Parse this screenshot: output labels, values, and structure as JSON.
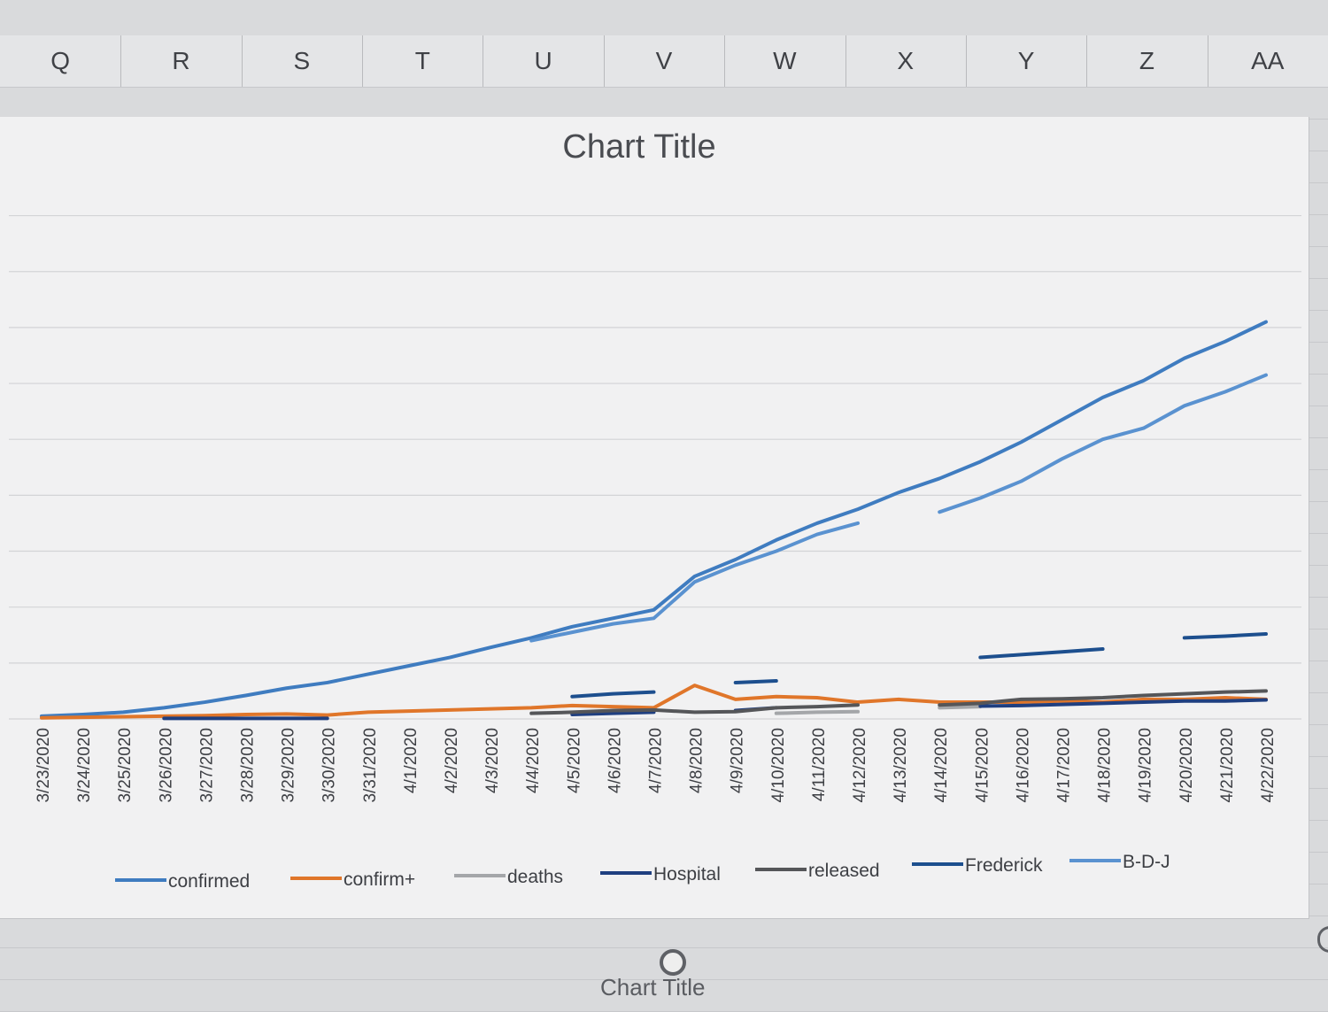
{
  "spreadsheet": {
    "columns": [
      "Q",
      "R",
      "S",
      "T",
      "U",
      "V",
      "W",
      "X",
      "Y",
      "Z",
      "AA"
    ]
  },
  "chart_data": {
    "type": "line",
    "title": "Chart Title",
    "xlabel": "",
    "ylabel": "",
    "ylim": [
      0,
      950
    ],
    "grid": "horizontal",
    "legend_position": "bottom",
    "categories": [
      "3/23/2020",
      "3/24/2020",
      "3/25/2020",
      "3/26/2020",
      "3/27/2020",
      "3/28/2020",
      "3/29/2020",
      "3/30/2020",
      "3/31/2020",
      "4/1/2020",
      "4/2/2020",
      "4/3/2020",
      "4/4/2020",
      "4/5/2020",
      "4/6/2020",
      "4/7/2020",
      "4/8/2020",
      "4/9/2020",
      "4/10/2020",
      "4/11/2020",
      "4/12/2020",
      "4/13/2020",
      "4/14/2020",
      "4/15/2020",
      "4/16/2020",
      "4/17/2020",
      "4/18/2020",
      "4/19/2020",
      "4/20/2020",
      "4/21/2020",
      "4/22/2020"
    ],
    "series": [
      {
        "name": "confirmed",
        "color": "#3f7cc0",
        "values": [
          5,
          8,
          12,
          20,
          30,
          42,
          55,
          65,
          80,
          95,
          110,
          128,
          145,
          165,
          180,
          195,
          255,
          285,
          320,
          350,
          375,
          405,
          430,
          460,
          495,
          535,
          575,
          605,
          645,
          675,
          710
        ]
      },
      {
        "name": "confirm+",
        "color": "#e0762a",
        "values": [
          2,
          3,
          4,
          5,
          6,
          8,
          9,
          7,
          12,
          14,
          16,
          18,
          20,
          24,
          22,
          20,
          60,
          35,
          40,
          38,
          30,
          35,
          30,
          30,
          30,
          32,
          30,
          35,
          35,
          38,
          35
        ]
      },
      {
        "name": "deaths",
        "color": "#a4a6a9",
        "values": [
          null,
          null,
          null,
          null,
          null,
          null,
          null,
          null,
          null,
          null,
          null,
          null,
          null,
          null,
          null,
          null,
          null,
          null,
          10,
          12,
          13,
          null,
          20,
          22,
          null,
          null,
          null,
          null,
          null,
          null,
          null
        ]
      },
      {
        "name": "Hospital",
        "color": "#1f3f80",
        "values": [
          null,
          null,
          null,
          1,
          1,
          1,
          1,
          1,
          null,
          null,
          null,
          null,
          null,
          8,
          10,
          12,
          null,
          15,
          20,
          null,
          null,
          null,
          null,
          23,
          24,
          26,
          28,
          30,
          32,
          32,
          34
        ]
      },
      {
        "name": "released",
        "color": "#555659",
        "values": [
          null,
          null,
          null,
          null,
          null,
          null,
          null,
          null,
          null,
          null,
          null,
          null,
          10,
          12,
          15,
          16,
          12,
          13,
          20,
          22,
          25,
          null,
          25,
          28,
          35,
          36,
          38,
          42,
          45,
          48,
          50
        ]
      },
      {
        "name": "Frederick",
        "color": "#1d4f8e",
        "values": [
          null,
          null,
          null,
          null,
          null,
          null,
          null,
          null,
          null,
          null,
          null,
          null,
          null,
          40,
          45,
          48,
          null,
          65,
          68,
          null,
          null,
          null,
          null,
          110,
          115,
          120,
          125,
          null,
          145,
          148,
          152
        ]
      },
      {
        "name": "B-D-J",
        "color": "#5a92d0",
        "values": [
          null,
          null,
          null,
          null,
          null,
          null,
          null,
          null,
          null,
          null,
          null,
          null,
          140,
          155,
          170,
          180,
          245,
          275,
          300,
          330,
          350,
          null,
          370,
          395,
          425,
          465,
          500,
          520,
          560,
          585,
          615
        ]
      }
    ]
  }
}
